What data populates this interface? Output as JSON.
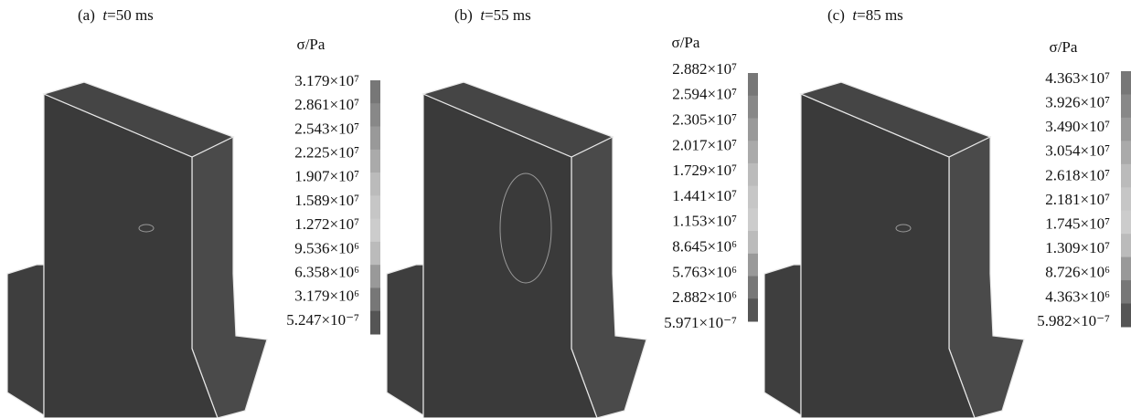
{
  "panels": [
    {
      "tag": "(a)",
      "var": "t",
      "value": "=50 ms",
      "legend_title": "σ/Pa",
      "levels": [
        "3.179×10⁷",
        "2.861×10⁷",
        "2.543×10⁷",
        "2.225×10⁷",
        "1.907×10⁷",
        "1.589×10⁷",
        "1.272×10⁷",
        "9.536×10⁶",
        "6.358×10⁶",
        "3.179×10⁶",
        "5.247×10⁻⁷"
      ]
    },
    {
      "tag": "(b)",
      "var": "t",
      "value": "=55 ms",
      "legend_title": "σ/Pa",
      "levels": [
        "2.882×10⁷",
        "2.594×10⁷",
        "2.305×10⁷",
        "2.017×10⁷",
        "1.729×10⁷",
        "1.441×10⁷",
        "1.153×10⁷",
        "8.645×10⁶",
        "5.763×10⁶",
        "2.882×10⁶",
        "5.971×10⁻⁷"
      ]
    },
    {
      "tag": "(c)",
      "var": "t",
      "value": "=85 ms",
      "legend_title": "σ/Pa",
      "levels": [
        "4.363×10⁷",
        "3.926×10⁷",
        "3.490×10⁷",
        "3.054×10⁷",
        "2.618×10⁷",
        "2.181×10⁷",
        "1.745×10⁷",
        "1.309×10⁷",
        "8.726×10⁶",
        "4.363×10⁶",
        "5.982×10⁻⁷"
      ]
    }
  ]
}
